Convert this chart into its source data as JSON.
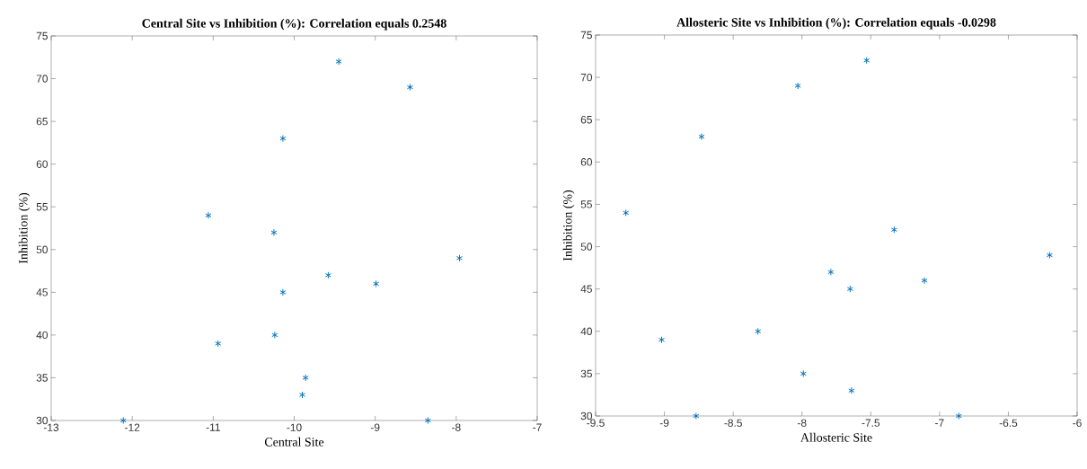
{
  "chart_data": [
    {
      "type": "scatter",
      "title": "Central Site vs Inhibition (%): Correlation equals 0.2548",
      "xlabel": "Central Site",
      "ylabel": "Inhibition (%)",
      "x": [
        -12.11,
        -11.06,
        -10.94,
        -10.25,
        -10.24,
        -10.14,
        -10.14,
        -9.9,
        -9.86,
        -9.58,
        -9.45,
        -8.99,
        -8.57,
        -8.35,
        -7.96
      ],
      "values": [
        30,
        54,
        39,
        52,
        40,
        63,
        45,
        33,
        35,
        47,
        72,
        46,
        69,
        30,
        49
      ],
      "color": "#0072bd",
      "marker": "cross",
      "grid": false,
      "xlim": [
        -13,
        -7
      ],
      "ylim": [
        30,
        75
      ],
      "xticks": [
        -13,
        -12,
        -11,
        -10,
        -9,
        -8,
        -7
      ],
      "yticks": [
        30,
        35,
        40,
        45,
        50,
        55,
        60,
        65,
        70,
        75
      ]
    },
    {
      "type": "scatter",
      "title": "Allosteric Site vs Inhibition (%): Correlation equals -0.0298",
      "xlabel": "Allosteric Site",
      "ylabel": "Inhibition (%)",
      "x": [
        -9.28,
        -9.02,
        -8.77,
        -8.73,
        -8.32,
        -8.03,
        -7.99,
        -7.79,
        -7.65,
        -7.64,
        -7.53,
        -7.33,
        -7.11,
        -6.86,
        -6.2
      ],
      "values": [
        54,
        39,
        30,
        63,
        40,
        69,
        35,
        47,
        45,
        33,
        72,
        52,
        46,
        30,
        49
      ],
      "color": "#0072bd",
      "marker": "cross",
      "grid": false,
      "xlim": [
        -9.5,
        -6
      ],
      "ylim": [
        30,
        75
      ],
      "xticks": [
        -9.5,
        -9,
        -8.5,
        -8,
        -7.5,
        -7,
        -6.5,
        -6
      ],
      "yticks": [
        30,
        35,
        40,
        45,
        50,
        55,
        60,
        65,
        70,
        75
      ]
    }
  ]
}
